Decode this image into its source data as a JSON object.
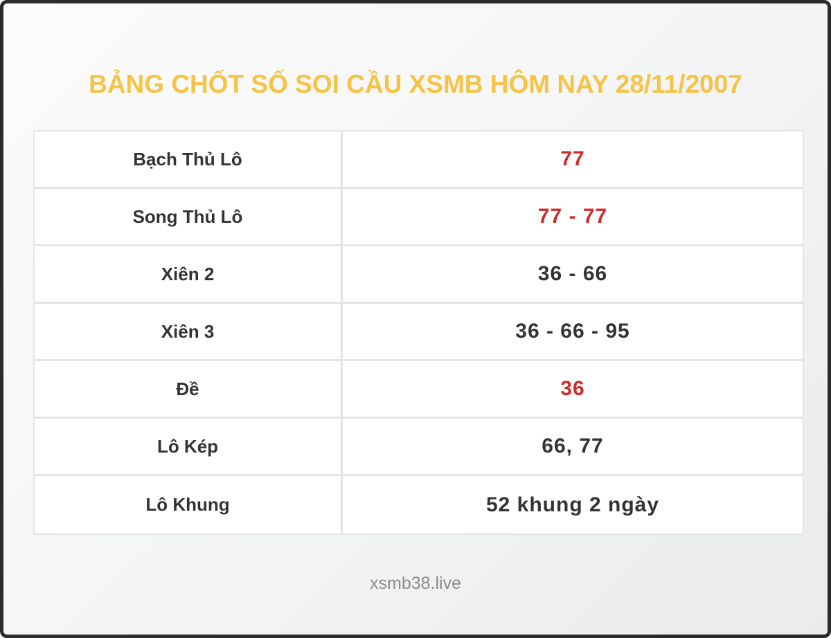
{
  "page": {
    "title": "BẢNG CHỐT SỐ SOI CẦU XSMB HÔM NAY 28/11/2007",
    "footer": "xsmb38.live"
  },
  "colors": {
    "title": "#f6c344",
    "value_highlight": "#d02b2b",
    "text_dark": "#333333",
    "footer_text": "#8c8c8c",
    "frame_border": "#2b2b2b",
    "table_border": "#e4e4e6",
    "cell_background": "#ffffff"
  },
  "table": {
    "rows": [
      {
        "label": "Bạch Thủ Lô",
        "value": "77",
        "highlight": true
      },
      {
        "label": "Song Thủ Lô",
        "value": "77 - 77",
        "highlight": true
      },
      {
        "label": "Xiên 2",
        "value": "36 - 66",
        "highlight": false
      },
      {
        "label": "Xiên 3",
        "value": "36 - 66 - 95",
        "highlight": false
      },
      {
        "label": "Đề",
        "value": "36",
        "highlight": true
      },
      {
        "label": "Lô Kép",
        "value": "66, 77",
        "highlight": false
      },
      {
        "label": "Lô Khung",
        "value": "52 khung 2 ngày",
        "highlight": false
      }
    ]
  }
}
